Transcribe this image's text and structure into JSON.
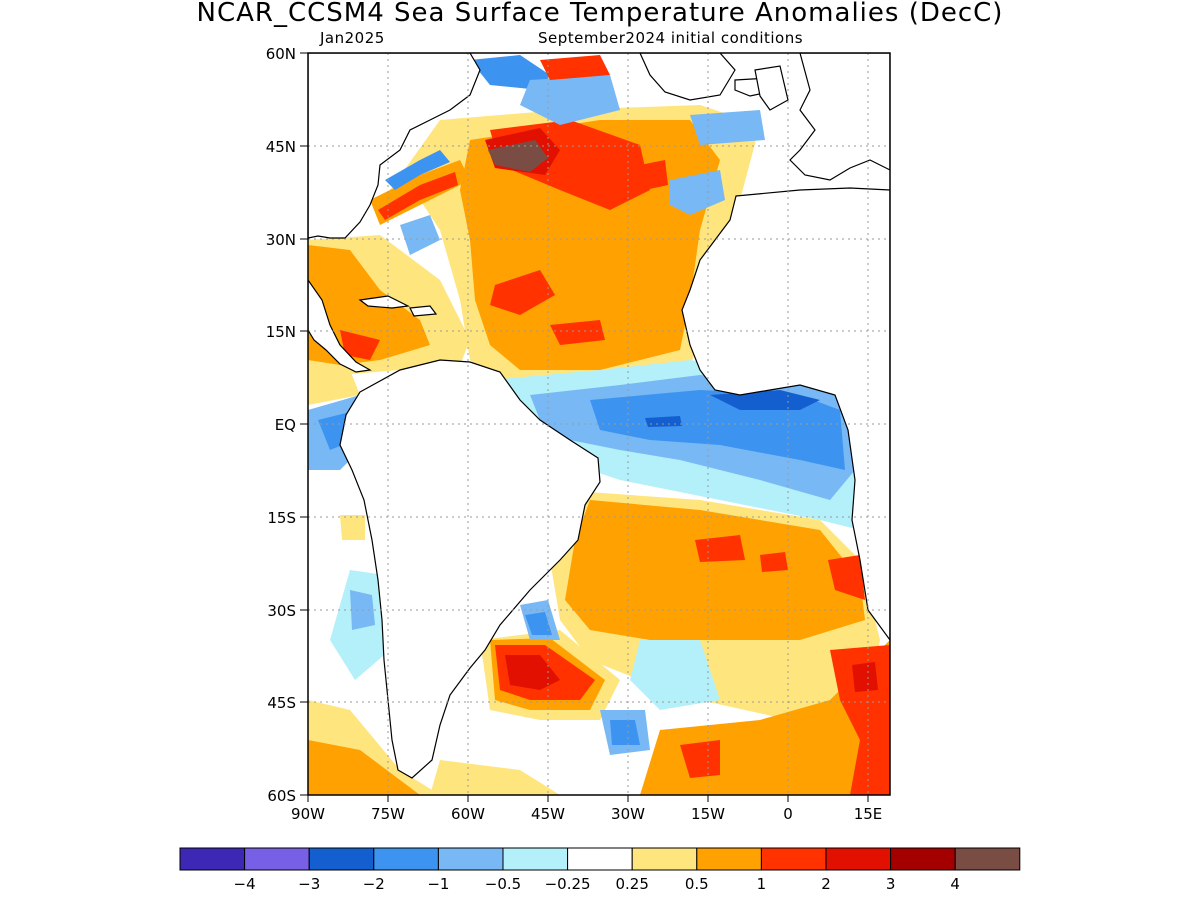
{
  "title": "NCAR_CCSM4 Sea Surface Temperature Anomalies (DecC)",
  "subtitle_left": "Jan2025",
  "subtitle_right": "September2024 initial conditions",
  "map": {
    "region": "Atlantic Ocean",
    "lon_range": [
      -90,
      19
    ],
    "lat_range": [
      -60,
      60
    ],
    "lat_ticks": [
      "60N",
      "45N",
      "30N",
      "15N",
      "EQ",
      "15S",
      "30S",
      "45S",
      "60S"
    ],
    "lon_ticks": [
      "90W",
      "75W",
      "60W",
      "45W",
      "30W",
      "15W",
      "0",
      "15E"
    ],
    "grid": "dotted",
    "colors": {
      "land": "#ffffff",
      "coastline": "#000000"
    }
  },
  "colorbar": {
    "colors": [
      "#3c28b4",
      "#7860e6",
      "#145fcf",
      "#3d94f0",
      "#78b8f5",
      "#b3f0fa",
      "#ffffff",
      "#ffe57d",
      "#ffa100",
      "#ff3200",
      "#e11000",
      "#a50000",
      "#7a4d44"
    ],
    "labels": [
      "−4",
      "−3",
      "−2",
      "−1",
      "−0.5",
      "−0.25",
      "0.25",
      "0.5",
      "1",
      "2",
      "3",
      "4"
    ]
  }
}
